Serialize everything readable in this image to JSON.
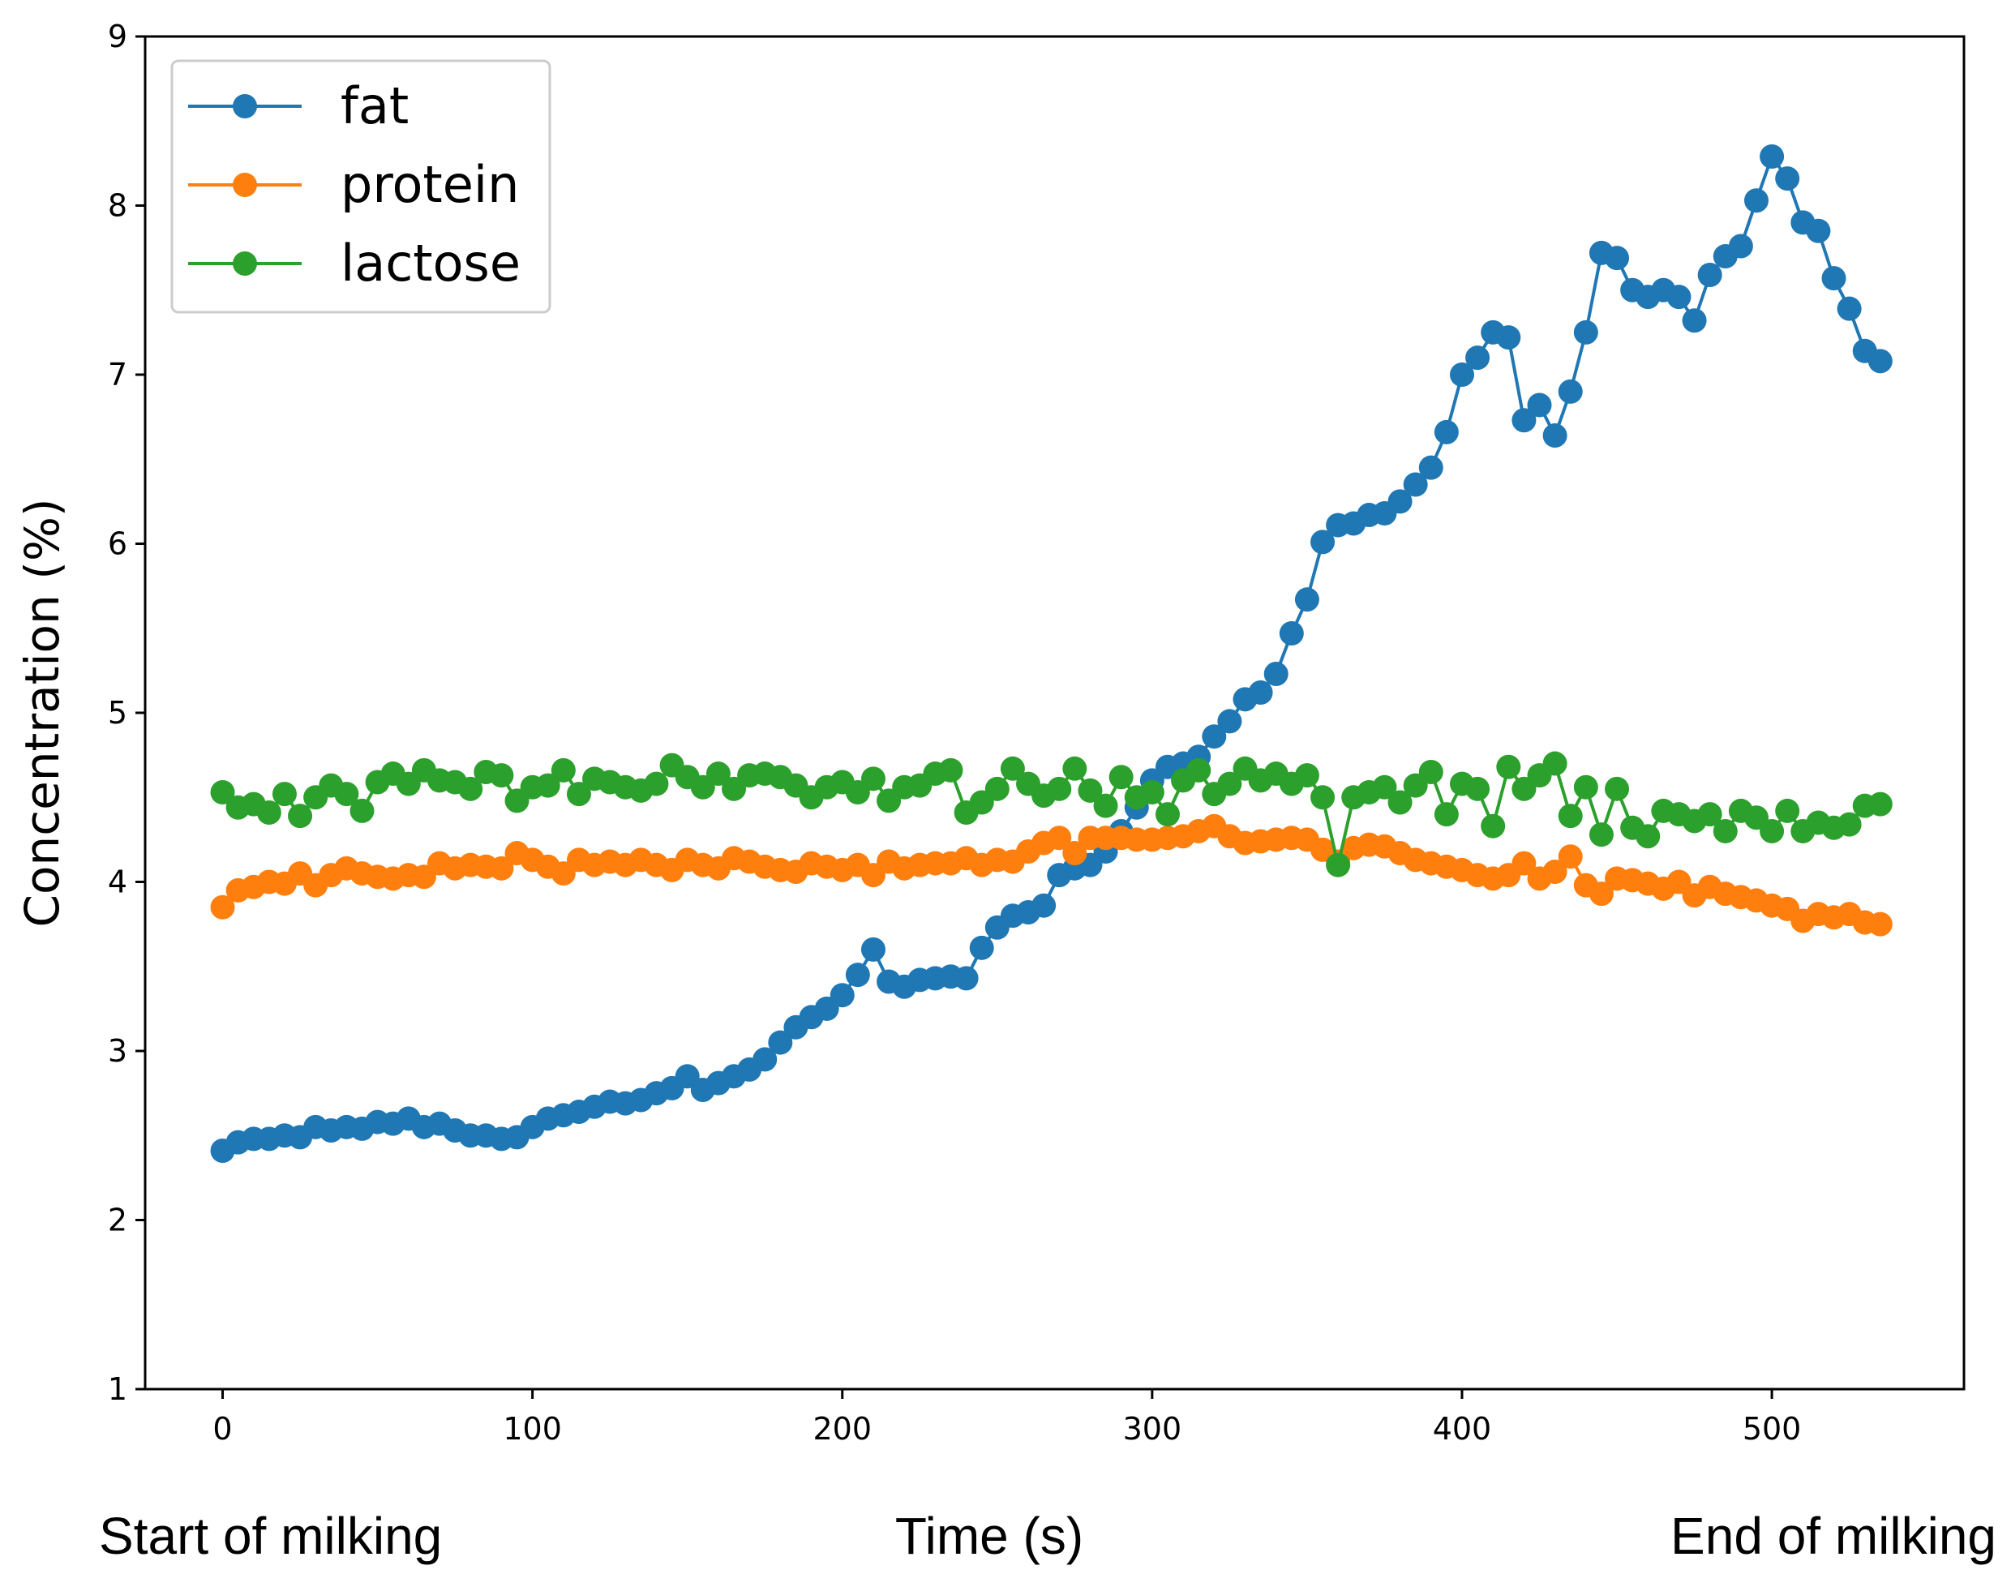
{
  "chart_data": {
    "type": "line",
    "title": "",
    "xlabel": "Time (s)",
    "ylabel": "Concentration (%)",
    "xlim": [
      -25,
      562
    ],
    "ylim": [
      1,
      9
    ],
    "xticks": [
      0,
      100,
      200,
      300,
      400,
      500
    ],
    "yticks": [
      1,
      2,
      3,
      4,
      5,
      6,
      7,
      8,
      9
    ],
    "grid": false,
    "legend_position": "top-left",
    "annotations": {
      "start": "Start of milking",
      "end": "End of milking"
    },
    "series": [
      {
        "name": "fat",
        "color": "#1f77b4",
        "points": [
          [
            0,
            2.41
          ],
          [
            5,
            2.46
          ],
          [
            10,
            2.48
          ],
          [
            15,
            2.48
          ],
          [
            20,
            2.5
          ],
          [
            25,
            2.49
          ],
          [
            30,
            2.55
          ],
          [
            35,
            2.53
          ],
          [
            40,
            2.55
          ],
          [
            45,
            2.54
          ],
          [
            50,
            2.58
          ],
          [
            55,
            2.57
          ],
          [
            60,
            2.6
          ],
          [
            65,
            2.55
          ],
          [
            70,
            2.57
          ],
          [
            75,
            2.53
          ],
          [
            80,
            2.5
          ],
          [
            85,
            2.5
          ],
          [
            90,
            2.48
          ],
          [
            95,
            2.49
          ],
          [
            100,
            2.55
          ],
          [
            105,
            2.6
          ],
          [
            110,
            2.62
          ],
          [
            115,
            2.64
          ],
          [
            120,
            2.67
          ],
          [
            125,
            2.7
          ],
          [
            130,
            2.69
          ],
          [
            135,
            2.71
          ],
          [
            140,
            2.75
          ],
          [
            145,
            2.78
          ],
          [
            150,
            2.85
          ],
          [
            155,
            2.77
          ],
          [
            160,
            2.81
          ],
          [
            165,
            2.85
          ],
          [
            170,
            2.89
          ],
          [
            175,
            2.95
          ],
          [
            180,
            3.05
          ],
          [
            185,
            3.14
          ],
          [
            190,
            3.2
          ],
          [
            195,
            3.25
          ],
          [
            200,
            3.33
          ],
          [
            205,
            3.45
          ],
          [
            210,
            3.6
          ],
          [
            215,
            3.41
          ],
          [
            220,
            3.38
          ],
          [
            225,
            3.42
          ],
          [
            230,
            3.43
          ],
          [
            235,
            3.44
          ],
          [
            240,
            3.43
          ],
          [
            245,
            3.61
          ],
          [
            250,
            3.73
          ],
          [
            255,
            3.8
          ],
          [
            260,
            3.82
          ],
          [
            265,
            3.86
          ],
          [
            270,
            4.04
          ],
          [
            275,
            4.08
          ],
          [
            280,
            4.1
          ],
          [
            285,
            4.18
          ],
          [
            290,
            4.3
          ],
          [
            295,
            4.44
          ],
          [
            300,
            4.6
          ],
          [
            305,
            4.68
          ],
          [
            310,
            4.7
          ],
          [
            315,
            4.74
          ],
          [
            320,
            4.86
          ],
          [
            325,
            4.95
          ],
          [
            330,
            5.08
          ],
          [
            335,
            5.12
          ],
          [
            340,
            5.23
          ],
          [
            345,
            5.47
          ],
          [
            350,
            5.67
          ],
          [
            355,
            6.01
          ],
          [
            360,
            6.11
          ],
          [
            365,
            6.12
          ],
          [
            370,
            6.17
          ],
          [
            375,
            6.18
          ],
          [
            380,
            6.25
          ],
          [
            385,
            6.35
          ],
          [
            390,
            6.45
          ],
          [
            395,
            6.66
          ],
          [
            400,
            7.0
          ],
          [
            405,
            7.1
          ],
          [
            410,
            7.25
          ],
          [
            415,
            7.22
          ],
          [
            420,
            6.73
          ],
          [
            425,
            6.82
          ],
          [
            430,
            6.64
          ],
          [
            435,
            6.9
          ],
          [
            440,
            7.25
          ],
          [
            445,
            7.72
          ],
          [
            450,
            7.69
          ],
          [
            455,
            7.5
          ],
          [
            460,
            7.46
          ],
          [
            465,
            7.5
          ],
          [
            470,
            7.46
          ],
          [
            475,
            7.32
          ],
          [
            480,
            7.59
          ],
          [
            485,
            7.7
          ],
          [
            490,
            7.76
          ],
          [
            495,
            8.03
          ],
          [
            500,
            8.29
          ],
          [
            505,
            8.16
          ],
          [
            510,
            7.9
          ],
          [
            515,
            7.85
          ],
          [
            520,
            7.57
          ],
          [
            525,
            7.39
          ],
          [
            530,
            7.14
          ],
          [
            535,
            7.08
          ]
        ]
      },
      {
        "name": "protein",
        "color": "#ff7f0e",
        "points": [
          [
            0,
            3.85
          ],
          [
            5,
            3.95
          ],
          [
            10,
            3.97
          ],
          [
            15,
            4.0
          ],
          [
            20,
            3.99
          ],
          [
            25,
            4.05
          ],
          [
            30,
            3.98
          ],
          [
            35,
            4.04
          ],
          [
            40,
            4.08
          ],
          [
            45,
            4.05
          ],
          [
            50,
            4.03
          ],
          [
            55,
            4.02
          ],
          [
            60,
            4.04
          ],
          [
            65,
            4.03
          ],
          [
            70,
            4.11
          ],
          [
            75,
            4.08
          ],
          [
            80,
            4.1
          ],
          [
            85,
            4.09
          ],
          [
            90,
            4.08
          ],
          [
            95,
            4.17
          ],
          [
            100,
            4.13
          ],
          [
            105,
            4.09
          ],
          [
            110,
            4.05
          ],
          [
            115,
            4.13
          ],
          [
            120,
            4.1
          ],
          [
            125,
            4.12
          ],
          [
            130,
            4.1
          ],
          [
            135,
            4.13
          ],
          [
            140,
            4.1
          ],
          [
            145,
            4.07
          ],
          [
            150,
            4.13
          ],
          [
            155,
            4.1
          ],
          [
            160,
            4.08
          ],
          [
            165,
            4.14
          ],
          [
            170,
            4.12
          ],
          [
            175,
            4.09
          ],
          [
            180,
            4.07
          ],
          [
            185,
            4.06
          ],
          [
            190,
            4.11
          ],
          [
            195,
            4.09
          ],
          [
            200,
            4.07
          ],
          [
            205,
            4.1
          ],
          [
            210,
            4.04
          ],
          [
            215,
            4.12
          ],
          [
            220,
            4.08
          ],
          [
            225,
            4.1
          ],
          [
            230,
            4.11
          ],
          [
            235,
            4.11
          ],
          [
            240,
            4.14
          ],
          [
            245,
            4.1
          ],
          [
            250,
            4.13
          ],
          [
            255,
            4.12
          ],
          [
            260,
            4.18
          ],
          [
            265,
            4.23
          ],
          [
            270,
            4.26
          ],
          [
            275,
            4.17
          ],
          [
            280,
            4.26
          ],
          [
            285,
            4.26
          ],
          [
            290,
            4.26
          ],
          [
            295,
            4.25
          ],
          [
            300,
            4.25
          ],
          [
            305,
            4.26
          ],
          [
            310,
            4.27
          ],
          [
            315,
            4.3
          ],
          [
            320,
            4.33
          ],
          [
            325,
            4.27
          ],
          [
            330,
            4.23
          ],
          [
            335,
            4.24
          ],
          [
            340,
            4.25
          ],
          [
            345,
            4.26
          ],
          [
            350,
            4.25
          ],
          [
            355,
            4.19
          ],
          [
            360,
            4.12
          ],
          [
            365,
            4.2
          ],
          [
            370,
            4.22
          ],
          [
            375,
            4.21
          ],
          [
            380,
            4.17
          ],
          [
            385,
            4.13
          ],
          [
            390,
            4.11
          ],
          [
            395,
            4.09
          ],
          [
            400,
            4.07
          ],
          [
            405,
            4.04
          ],
          [
            410,
            4.02
          ],
          [
            415,
            4.04
          ],
          [
            420,
            4.11
          ],
          [
            425,
            4.02
          ],
          [
            430,
            4.06
          ],
          [
            435,
            4.15
          ],
          [
            440,
            3.98
          ],
          [
            445,
            3.93
          ],
          [
            450,
            4.02
          ],
          [
            455,
            4.01
          ],
          [
            460,
            3.99
          ],
          [
            465,
            3.96
          ],
          [
            470,
            4.0
          ],
          [
            475,
            3.92
          ],
          [
            480,
            3.97
          ],
          [
            485,
            3.93
          ],
          [
            490,
            3.91
          ],
          [
            495,
            3.89
          ],
          [
            500,
            3.86
          ],
          [
            505,
            3.84
          ],
          [
            510,
            3.77
          ],
          [
            515,
            3.81
          ],
          [
            520,
            3.79
          ],
          [
            525,
            3.81
          ],
          [
            530,
            3.76
          ],
          [
            535,
            3.75
          ]
        ]
      },
      {
        "name": "lactose",
        "color": "#2ca02c",
        "points": [
          [
            0,
            4.53
          ],
          [
            5,
            4.44
          ],
          [
            10,
            4.46
          ],
          [
            15,
            4.41
          ],
          [
            20,
            4.52
          ],
          [
            25,
            4.39
          ],
          [
            30,
            4.5
          ],
          [
            35,
            4.57
          ],
          [
            40,
            4.52
          ],
          [
            45,
            4.42
          ],
          [
            50,
            4.59
          ],
          [
            55,
            4.64
          ],
          [
            60,
            4.58
          ],
          [
            65,
            4.66
          ],
          [
            70,
            4.6
          ],
          [
            75,
            4.59
          ],
          [
            80,
            4.55
          ],
          [
            85,
            4.65
          ],
          [
            90,
            4.63
          ],
          [
            95,
            4.48
          ],
          [
            100,
            4.56
          ],
          [
            105,
            4.57
          ],
          [
            110,
            4.66
          ],
          [
            115,
            4.52
          ],
          [
            120,
            4.61
          ],
          [
            125,
            4.59
          ],
          [
            130,
            4.56
          ],
          [
            135,
            4.54
          ],
          [
            140,
            4.58
          ],
          [
            145,
            4.69
          ],
          [
            150,
            4.62
          ],
          [
            155,
            4.56
          ],
          [
            160,
            4.64
          ],
          [
            165,
            4.55
          ],
          [
            170,
            4.63
          ],
          [
            175,
            4.64
          ],
          [
            180,
            4.62
          ],
          [
            185,
            4.57
          ],
          [
            190,
            4.5
          ],
          [
            195,
            4.56
          ],
          [
            200,
            4.59
          ],
          [
            205,
            4.53
          ],
          [
            210,
            4.61
          ],
          [
            215,
            4.48
          ],
          [
            220,
            4.56
          ],
          [
            225,
            4.57
          ],
          [
            230,
            4.64
          ],
          [
            235,
            4.66
          ],
          [
            240,
            4.41
          ],
          [
            245,
            4.47
          ],
          [
            250,
            4.55
          ],
          [
            255,
            4.67
          ],
          [
            260,
            4.58
          ],
          [
            265,
            4.51
          ],
          [
            270,
            4.55
          ],
          [
            275,
            4.67
          ],
          [
            280,
            4.54
          ],
          [
            285,
            4.45
          ],
          [
            290,
            4.62
          ],
          [
            295,
            4.5
          ],
          [
            300,
            4.53
          ],
          [
            305,
            4.4
          ],
          [
            310,
            4.6
          ],
          [
            315,
            4.66
          ],
          [
            320,
            4.52
          ],
          [
            325,
            4.58
          ],
          [
            330,
            4.67
          ],
          [
            335,
            4.6
          ],
          [
            340,
            4.64
          ],
          [
            345,
            4.58
          ],
          [
            350,
            4.63
          ],
          [
            355,
            4.5
          ],
          [
            360,
            4.1
          ],
          [
            365,
            4.5
          ],
          [
            370,
            4.53
          ],
          [
            375,
            4.56
          ],
          [
            380,
            4.47
          ],
          [
            385,
            4.57
          ],
          [
            390,
            4.65
          ],
          [
            395,
            4.4
          ],
          [
            400,
            4.58
          ],
          [
            405,
            4.55
          ],
          [
            410,
            4.33
          ],
          [
            415,
            4.68
          ],
          [
            420,
            4.55
          ],
          [
            425,
            4.63
          ],
          [
            430,
            4.7
          ],
          [
            435,
            4.39
          ],
          [
            440,
            4.56
          ],
          [
            445,
            4.28
          ],
          [
            450,
            4.55
          ],
          [
            455,
            4.32
          ],
          [
            460,
            4.27
          ],
          [
            465,
            4.42
          ],
          [
            470,
            4.4
          ],
          [
            475,
            4.36
          ],
          [
            480,
            4.4
          ],
          [
            485,
            4.3
          ],
          [
            490,
            4.42
          ],
          [
            495,
            4.38
          ],
          [
            500,
            4.3
          ],
          [
            505,
            4.42
          ],
          [
            510,
            4.3
          ],
          [
            515,
            4.35
          ],
          [
            520,
            4.32
          ],
          [
            525,
            4.34
          ],
          [
            530,
            4.45
          ],
          [
            535,
            4.46
          ]
        ]
      }
    ]
  }
}
